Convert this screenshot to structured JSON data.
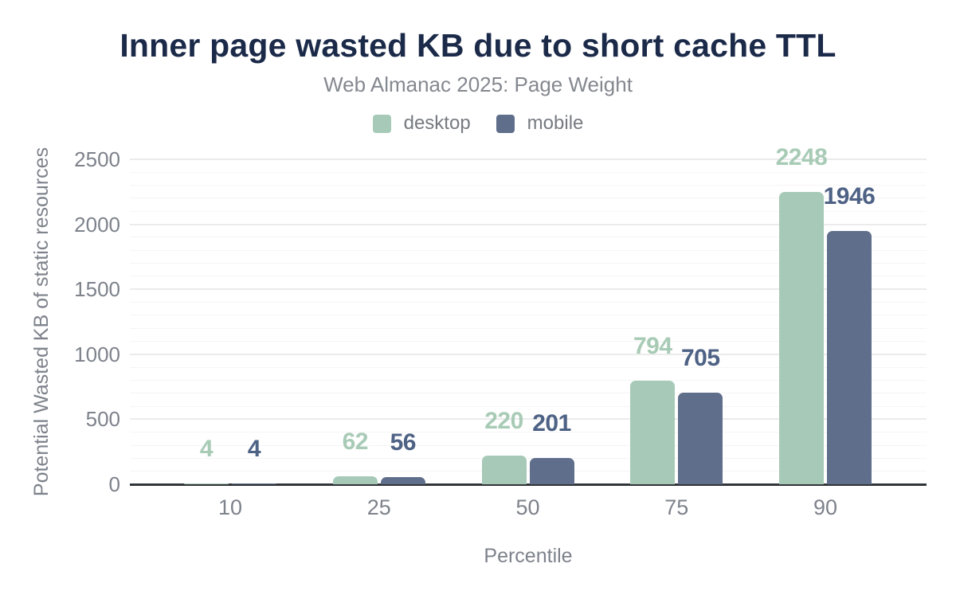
{
  "header": {
    "title": "Inner page wasted KB due to short cache TTL",
    "subtitle": "Web Almanac 2025: Page Weight"
  },
  "chart_data": {
    "type": "bar",
    "title": "Inner page wasted KB due to short cache TTL",
    "subtitle": "Web Almanac 2025: Page Weight",
    "categories": [
      "10",
      "25",
      "50",
      "75",
      "90"
    ],
    "series": [
      {
        "name": "desktop",
        "color": "#a6cab7",
        "label_color": "#a8cbb6",
        "values": [
          4,
          62,
          220,
          794,
          2248
        ]
      },
      {
        "name": "mobile",
        "color": "#5f6e8b",
        "label_color": "#4e6285",
        "values": [
          4,
          56,
          201,
          705,
          1946
        ]
      }
    ],
    "xlabel": "Percentile",
    "ylabel": "Potential Wasted KB of static resources",
    "ylim": [
      0,
      2500
    ],
    "yticks": [
      0,
      500,
      1000,
      1500,
      2000,
      2500
    ],
    "minor_grid_step": 100,
    "major_grid_step": 500,
    "grid": true,
    "legend_position": "top",
    "bar_labels_shown": true
  },
  "colors": {
    "title": "#1b2a49",
    "subtitle": "#84888f",
    "legend_text": "#767a80",
    "tick_text": "#7d828b",
    "axis_line": "#313438",
    "minor_grid": "#f5f5f6",
    "major_grid": "#ebebec",
    "background": "#ffffff"
  }
}
